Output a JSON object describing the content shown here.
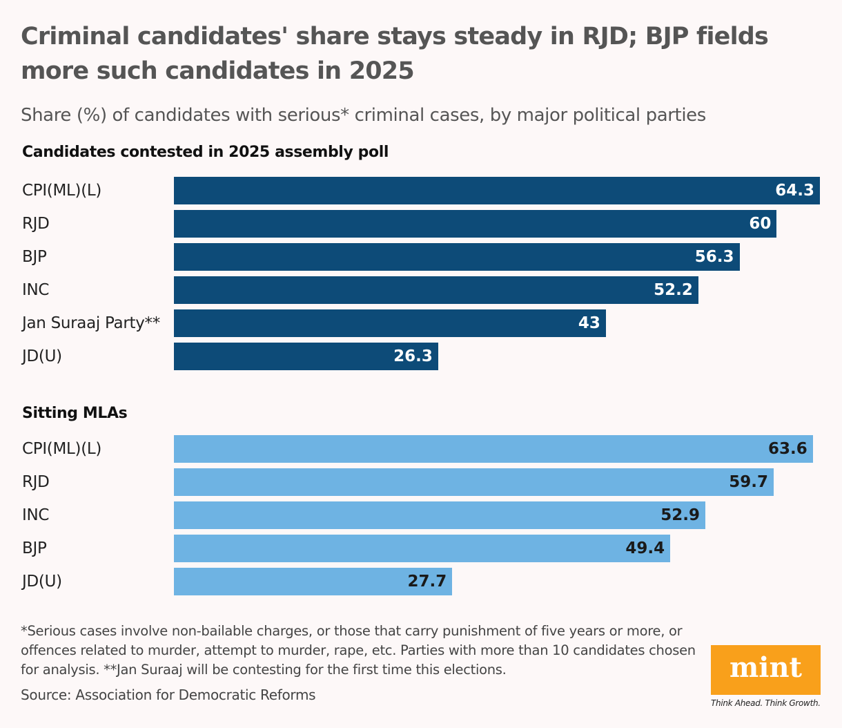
{
  "title": "Criminal candidates' share stays steady in RJD; BJP fields more such candidates in 2025",
  "subtitle": "Share (%) of candidates with serious* criminal cases, by major political parties",
  "colors": {
    "contested": "#0d4b78",
    "sitting": "#6eb3e3",
    "background": "#fdf8f8",
    "brand": "#f9a01b"
  },
  "chart_data": [
    {
      "type": "bar",
      "orientation": "horizontal",
      "title": "Candidates contested in 2025 assembly poll",
      "categories": [
        "CPI(ML)(L)",
        "RJD",
        "BJP",
        "INC",
        "Jan Suraaj Party**",
        "JD(U)"
      ],
      "values": [
        64.3,
        60,
        56.3,
        52.2,
        43,
        26.3
      ],
      "value_labels": [
        "64.3",
        "60",
        "56.3",
        "52.2",
        "43",
        "26.3"
      ],
      "xlim": [
        0,
        64.3
      ],
      "grid": false
    },
    {
      "type": "bar",
      "orientation": "horizontal",
      "title": "Sitting MLAs",
      "categories": [
        "CPI(ML)(L)",
        "RJD",
        "INC",
        "BJP",
        "JD(U)"
      ],
      "values": [
        63.6,
        59.7,
        52.9,
        49.4,
        27.7
      ],
      "value_labels": [
        "63.6",
        "59.7",
        "52.9",
        "49.4",
        "27.7"
      ],
      "xlim": [
        0,
        64.3
      ],
      "grid": false
    }
  ],
  "footnote": "*Serious cases involve non-bailable charges, or those that carry punishment of five years or more, or offences related to murder, attempt to murder, rape, etc. Parties with more than 10 candidates chosen for analysis. **Jan Suraaj will be contesting for the first time this elections.",
  "source": "Source: Association for Democratic Reforms",
  "logo": {
    "text": "mint",
    "tagline": "Think Ahead. Think Growth."
  }
}
